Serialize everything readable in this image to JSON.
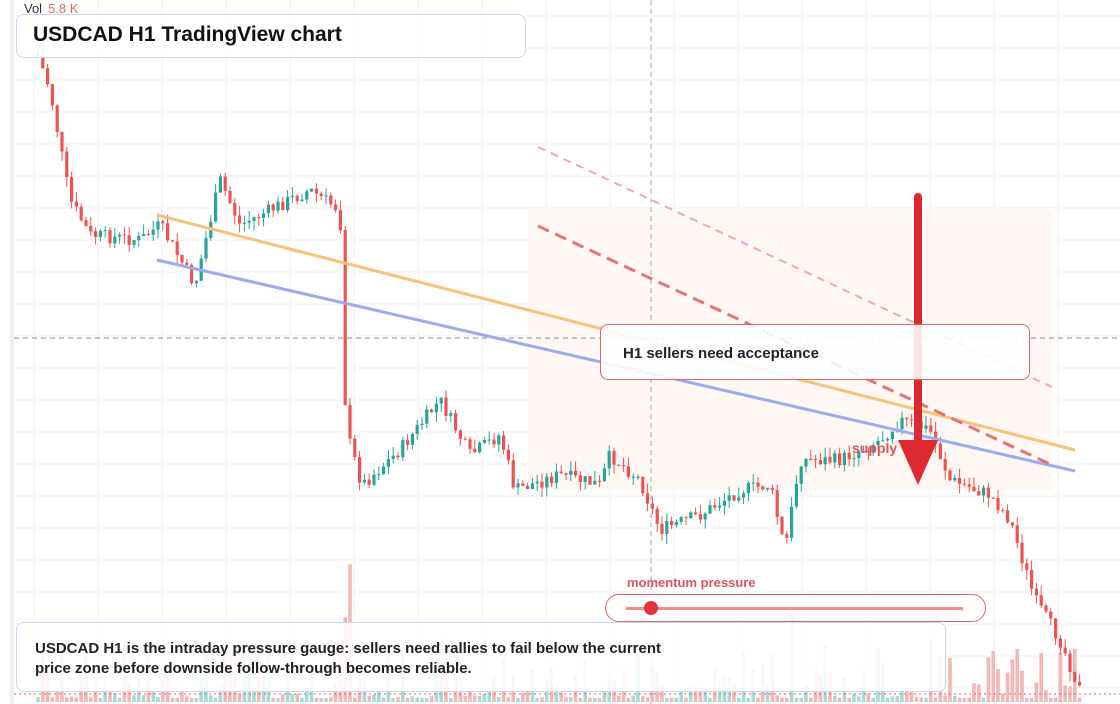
{
  "header": {
    "title": "USDCAD H1 TradingView chart"
  },
  "volume": {
    "label": "Vol",
    "value": "5.8 K"
  },
  "annotations": {
    "note": "H1 sellers need acceptance",
    "supply": "supply"
  },
  "gauge": {
    "label": "momentum pressure"
  },
  "caption": "USDCAD H1 is the intraday pressure gauge: sellers need rallies to fail below the current price zone before downside follow-through becomes reliable."
}
